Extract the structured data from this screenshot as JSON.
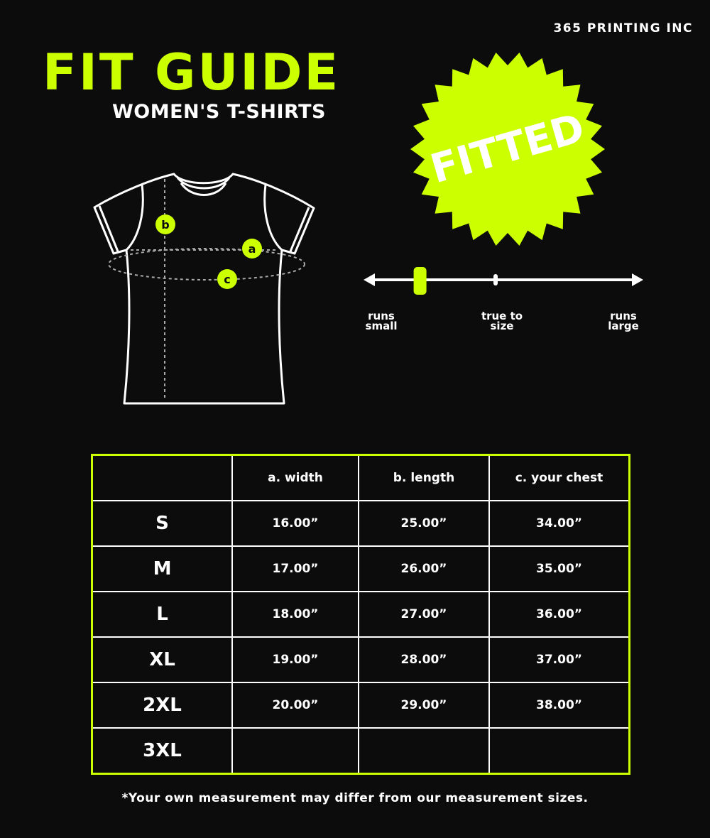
{
  "brand": "365 PRINTING INC",
  "title": "FIT GUIDE",
  "subtitle": "WOMEN'S T-SHIRTS",
  "badge": "FITTED",
  "colors": {
    "accent": "#ccff00",
    "background": "#0c0c0c",
    "line": "#ffffff"
  },
  "diagram_labels": {
    "a": "a",
    "b": "b",
    "c": "c"
  },
  "fit_scale": {
    "labels": [
      "runs small",
      "true to size",
      "runs large"
    ],
    "position_fraction": 0.18
  },
  "table": {
    "headers": [
      "",
      "a. width",
      "b. length",
      "c. your chest"
    ],
    "rows": [
      [
        "S",
        "16.00”",
        "25.00”",
        "34.00”"
      ],
      [
        "M",
        "17.00”",
        "26.00”",
        "35.00”"
      ],
      [
        "L",
        "18.00”",
        "27.00”",
        "36.00”"
      ],
      [
        "XL",
        "19.00”",
        "28.00”",
        "37.00”"
      ],
      [
        "2XL",
        "20.00”",
        "29.00”",
        "38.00”"
      ],
      [
        "3XL",
        "",
        "",
        ""
      ]
    ]
  },
  "note": "*Your own measurement may differ from our measurement sizes."
}
